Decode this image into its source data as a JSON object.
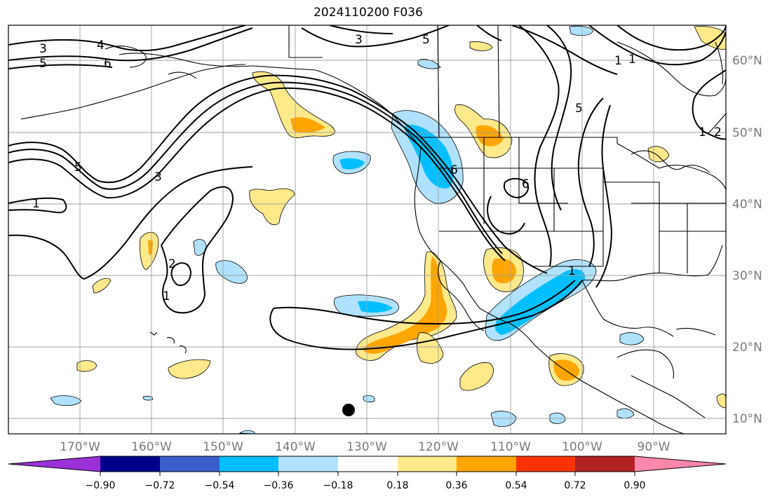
{
  "title": "2024110200 F036",
  "lon_labels": [
    "170°W",
    "160°W",
    "150°W",
    "140°W",
    "130°W",
    "120°W",
    "110°W",
    "100°W",
    "90°W"
  ],
  "lat_labels": [
    "60°N",
    "50°N",
    "40°N",
    "30°N",
    "20°N",
    "10°N"
  ],
  "colorbar": {
    "colors": [
      "#9b30d9",
      "#00008b",
      "#3a5fcd",
      "#00bfff",
      "#b0e2ff",
      "#ffffff",
      "#ffe98a",
      "#ffa500",
      "#ff3300",
      "#b22222",
      "#ff88aa"
    ],
    "tick_labels": [
      "−0.90",
      "−0.72",
      "−0.54",
      "−0.36",
      "−0.18",
      "0.18",
      "0.36",
      "0.54",
      "0.72",
      "0.90"
    ]
  },
  "contour_labels": [
    "3",
    "4",
    "5",
    "6",
    "5",
    "3",
    "5",
    "1",
    "1",
    "1",
    "5",
    "3",
    "1",
    "2",
    "1",
    "6",
    "6",
    "1",
    "2"
  ],
  "colors": {
    "land_outline": "#000000",
    "grid": "#a0a0a0",
    "negative_fill": "#00bfff",
    "positive_fill": "#ffa500"
  }
}
